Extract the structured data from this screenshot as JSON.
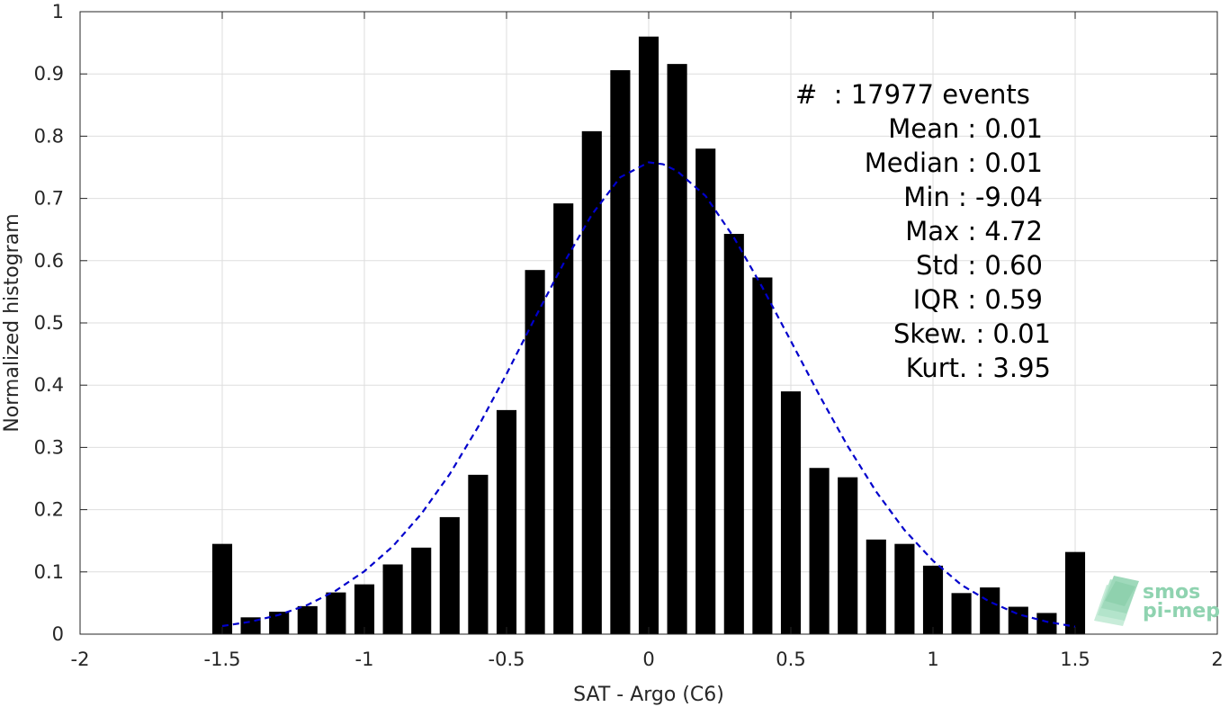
{
  "chart_data": {
    "type": "bar",
    "xlabel": "SAT - Argo (C6)",
    "ylabel": "Normalized histogram",
    "xlim": [
      -2,
      2
    ],
    "ylim": [
      0,
      1
    ],
    "xticks": [
      -2,
      -1.5,
      -1,
      -0.5,
      0,
      0.5,
      1,
      1.5,
      2
    ],
    "yticks": [
      0,
      0.1,
      0.2,
      0.3,
      0.4,
      0.5,
      0.6,
      0.7,
      0.8,
      0.9,
      1
    ],
    "xtick_labels": [
      "-2",
      "-1.5",
      "-1",
      "-0.5",
      "0",
      "0.5",
      "1",
      "1.5",
      "2"
    ],
    "ytick_labels": [
      "0",
      "0.1",
      "0.2",
      "0.3",
      "0.4",
      "0.5",
      "0.6",
      "0.7",
      "0.8",
      "0.9",
      "1"
    ],
    "grid": true,
    "bar_color": "#000000",
    "bars": {
      "x": [
        -1.5,
        -1.4,
        -1.3,
        -1.2,
        -1.1,
        -1.0,
        -0.9,
        -0.8,
        -0.7,
        -0.6,
        -0.5,
        -0.4,
        -0.3,
        -0.2,
        -0.1,
        0.0,
        0.1,
        0.2,
        0.3,
        0.4,
        0.5,
        0.6,
        0.7,
        0.8,
        0.9,
        1.0,
        1.1,
        1.2,
        1.3,
        1.4,
        1.5
      ],
      "values": [
        0.145,
        0.027,
        0.036,
        0.045,
        0.067,
        0.08,
        0.112,
        0.139,
        0.188,
        0.256,
        0.36,
        0.585,
        0.692,
        0.808,
        0.906,
        0.96,
        0.916,
        0.78,
        0.643,
        0.573,
        0.39,
        0.267,
        0.252,
        0.152,
        0.145,
        0.11,
        0.066,
        0.075,
        0.044,
        0.034,
        0.132
      ]
    },
    "fit_curve": {
      "style": "dashed",
      "color": "#0000cc",
      "x": [
        -1.5,
        -1.4,
        -1.3,
        -1.2,
        -1.1,
        -1.0,
        -0.9,
        -0.8,
        -0.7,
        -0.6,
        -0.5,
        -0.4,
        -0.3,
        -0.2,
        -0.1,
        0.0,
        0.05,
        0.1,
        0.2,
        0.3,
        0.4,
        0.5,
        0.6,
        0.7,
        0.8,
        0.9,
        1.0,
        1.1,
        1.2,
        1.3,
        1.4,
        1.5
      ],
      "y": [
        0.013,
        0.02,
        0.031,
        0.047,
        0.07,
        0.101,
        0.141,
        0.193,
        0.257,
        0.333,
        0.418,
        0.508,
        0.595,
        0.674,
        0.734,
        0.758,
        0.755,
        0.744,
        0.704,
        0.637,
        0.557,
        0.471,
        0.384,
        0.302,
        0.229,
        0.167,
        0.118,
        0.079,
        0.052,
        0.032,
        0.02,
        0.012
      ]
    },
    "annotations": [
      "#  : 17977 events",
      "Mean : 0.01",
      "Median : 0.01",
      "Min : -9.04",
      "Max : 4.72",
      "Std : 0.60",
      "IQR : 0.59",
      "Skew. : 0.01",
      "Kurt. : 3.95"
    ]
  },
  "logo": {
    "line1": "smos",
    "line2": "pi-mep",
    "color": "#8fd3b0"
  }
}
